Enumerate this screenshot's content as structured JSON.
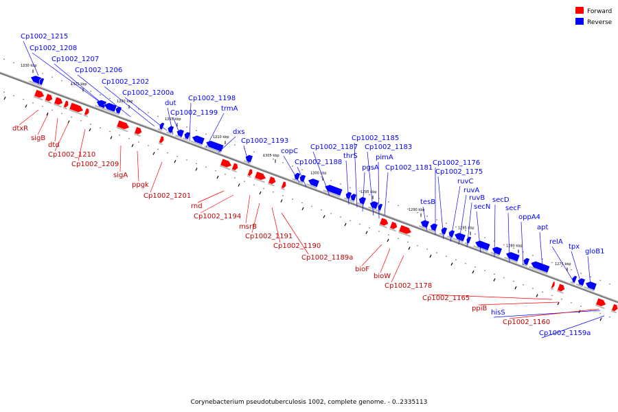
{
  "legend": {
    "forward_label": "Forward",
    "reverse_label": "Reverse",
    "forward_color": "#ff0000",
    "reverse_color": "#0000ff"
  },
  "caption": "Corynebacterium pseudotuberculosis 1002, complete genome. - 0..2335113",
  "ticks": [
    "1330 kbp",
    "1325 kbp",
    "1320 kbp",
    "1315 kbp",
    "1310 kbp",
    "1305 kbp",
    "1300 kbp",
    "1295 kbp",
    "1290 kbp",
    "1285 kbp",
    "1280 kbp",
    "1275 kbp"
  ],
  "reverse_genes": [
    "Cp1002_1215",
    "Cp1002_1208",
    "Cp1002_1207",
    "Cp1002_1206",
    "Cp1002_1202",
    "Cp1002_1200a",
    "dut",
    "Cp1002_1199",
    "Cp1002_1198",
    "trmA",
    "dxs",
    "Cp1002_1193",
    "copC",
    "Cp1002_1188",
    "Cp1002_1187",
    "thrS",
    "Cp1002_1185",
    "pgsA",
    "Cp1002_1183",
    "pimA",
    "Cp1002_1181",
    "tesB",
    "Cp1002_1176",
    "Cp1002_1175",
    "ruvC",
    "ruvA",
    "ruvB",
    "secN",
    "secD",
    "secF",
    "oppA4",
    "apt",
    "relA",
    "tpx",
    "gloB1",
    "hisS",
    "Cp1002_1159a"
  ],
  "forward_genes": [
    "dtxR",
    "sigB",
    "dtd",
    "Cp1002_1210",
    "Cp1002_1209",
    "sigA",
    "ppgk",
    "Cp1002_1201",
    "rnd",
    "Cp1002_1194",
    "msrB",
    "Cp1002_1191",
    "Cp1002_1190",
    "Cp1002_1189a",
    "bioF",
    "bioW",
    "Cp1002_1178",
    "Cp1002_1165",
    "ppiB",
    "Cp1002_1160"
  ]
}
